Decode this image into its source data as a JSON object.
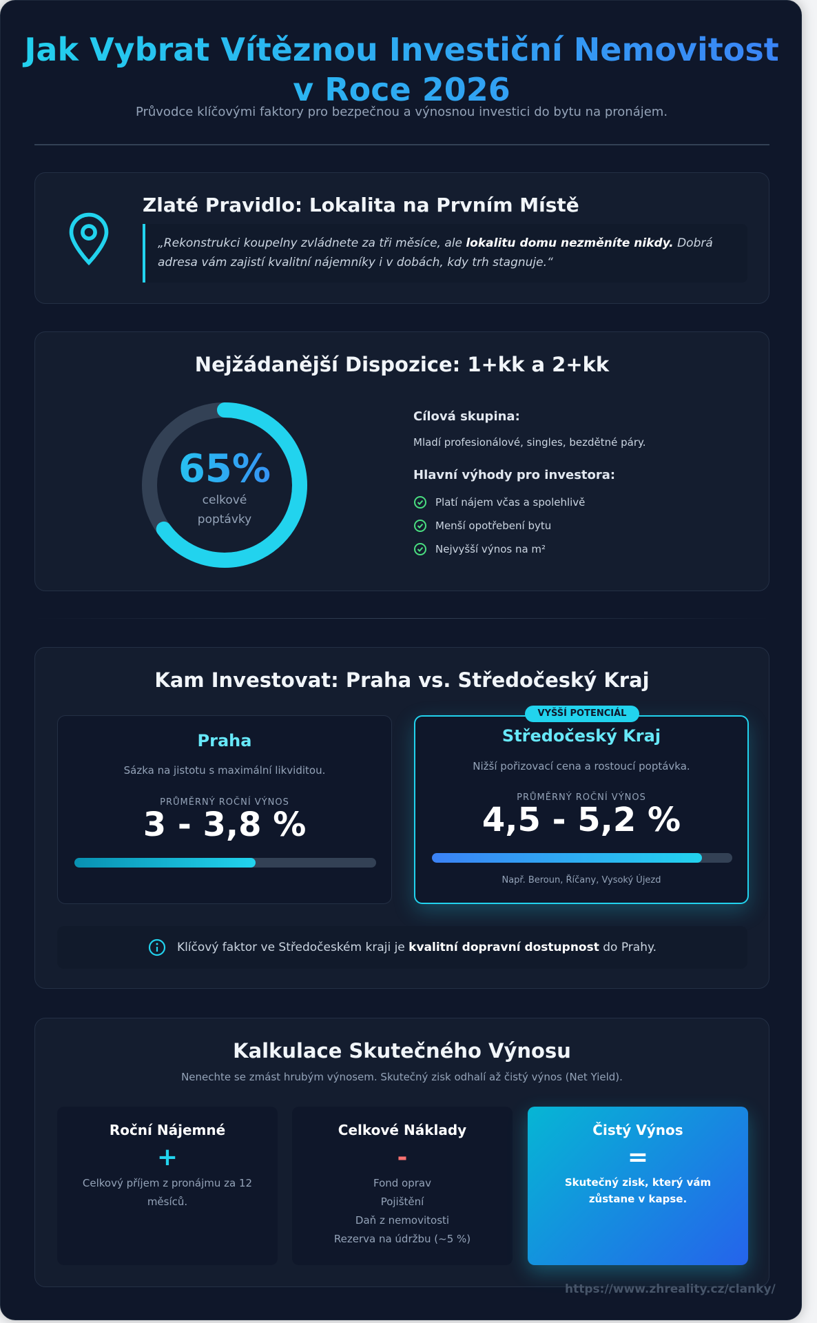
{
  "header": {
    "title_line1": "Jak Vybrat Vítěznou Investiční Nemovitost",
    "title_line2": "v Roce 2026",
    "subtitle": "Průvodce klíčovými faktory pro bezpečnou a výnosnou investici do bytu na pronájem."
  },
  "rule": {
    "icon": "map-pin-icon",
    "title": "Zlaté Pravidlo: Lokalita na Prvním Místě",
    "quote_start": "„Rekonstrukci koupelny zvládnete za tři měsíce, ale ",
    "quote_bold": "lokalitu domu nezměníte nikdy.",
    "quote_end": " Dobrá adresa vám zajistí kvalitní nájemníky i v dobách, kdy trh stagnuje.“"
  },
  "disposition": {
    "title": "Nejžádanější Dispozice: 1+kk a 2+kk",
    "percent_label": "65%",
    "percent_value": 65,
    "percent_caption": "celkové poptávky",
    "target_heading": "Cílová skupina:",
    "target_text": "Mladí profesionálové, singles, bezdětné páry.",
    "benefits_heading": "Hlavní výhody pro investora:",
    "benefits": [
      "Platí nájem včas a spolehlivě",
      "Menší opotřebení bytu",
      "Nejvyšší výnos na m²"
    ]
  },
  "compare": {
    "title": "Kam Investovat: Praha vs. Středočeský Kraj",
    "praha": {
      "name": "Praha",
      "desc": "Sázka na jistotu s maximální likviditou.",
      "label": "PRŮMĚRNÝ ROČNÍ VÝNOS",
      "value": "3 - 3,8 %",
      "bar_percent": 60
    },
    "stredocesky": {
      "badge": "VYŠŠÍ POTENCIÁL",
      "name": "Středočeský Kraj",
      "desc": "Nižší pořizovací cena a rostoucí poptávka.",
      "label": "PRŮMĚRNÝ ROČNÍ VÝNOS",
      "value": "4,5 - 5,2 %",
      "bar_percent": 90,
      "examples": "Např. Beroun, Říčany, Vysoký Újezd"
    },
    "info_start": "Klíčový faktor ve Středočeském kraji je ",
    "info_bold": "kvalitní dopravní dostupnost",
    "info_end": " do Prahy."
  },
  "calc": {
    "title": "Kalkulace Skutečného Výnosu",
    "subtitle": "Nenechte se zmást hrubým výnosem. Skutečný zisk odhalí až čistý výnos (Net Yield).",
    "boxes": [
      {
        "title": "Roční Nájemné",
        "sign": "+",
        "text": "Celkový příjem z pronájmu za 12 měsíců."
      },
      {
        "title": "Celkové Náklady",
        "sign": "-",
        "lines": [
          "Fond oprav",
          "Pojištění",
          "Daň z nemovitosti",
          "Rezerva na údržbu (~5 %)"
        ]
      },
      {
        "title": "Čistý Výnos",
        "sign": "=",
        "text": "Skutečný zisk, který vám zůstane v kapse."
      }
    ]
  },
  "footer": {
    "url": "https://www.zhreality.cz/clanky/"
  },
  "colors": {
    "accent": "#22d3ee",
    "blue": "#3b82f6",
    "check": "#4ade80",
    "minus": "#f87171"
  }
}
